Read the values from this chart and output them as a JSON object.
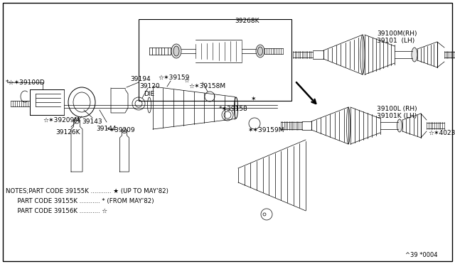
{
  "bg_color": "#ffffff",
  "line_color": "#000000",
  "fig_width": 6.4,
  "fig_height": 3.72,
  "dpi": 100,
  "notes_line1": "NOTES;PART CODE 39155K ........... * (UP TO MAY'82)",
  "notes_line2": "      PART CODE 39155K ........... * (FROM MAY'82)",
  "notes_line3": "      PART CODE 39156K ........... *",
  "ref_code": "^39 *0004"
}
